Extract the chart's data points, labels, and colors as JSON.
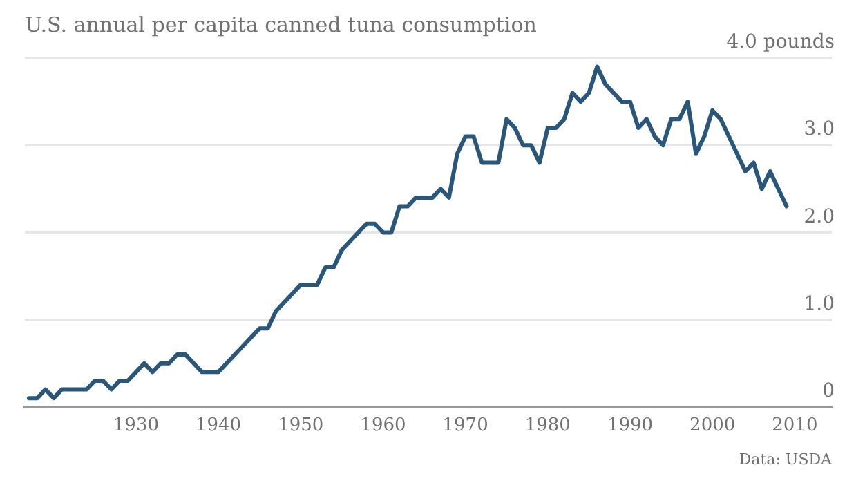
{
  "chart_data": {
    "type": "line",
    "title": "U.S. annual per capita canned tuna consumption",
    "annotations": [
      "Data: USDA"
    ],
    "x": [
      1917,
      1918,
      1919,
      1920,
      1921,
      1922,
      1923,
      1924,
      1925,
      1926,
      1927,
      1928,
      1929,
      1930,
      1931,
      1932,
      1933,
      1934,
      1935,
      1936,
      1937,
      1938,
      1939,
      1940,
      1941,
      1942,
      1943,
      1944,
      1945,
      1946,
      1947,
      1948,
      1949,
      1950,
      1951,
      1952,
      1953,
      1954,
      1955,
      1956,
      1957,
      1958,
      1959,
      1960,
      1961,
      1962,
      1963,
      1964,
      1965,
      1966,
      1967,
      1968,
      1969,
      1970,
      1971,
      1972,
      1973,
      1974,
      1975,
      1976,
      1977,
      1978,
      1979,
      1980,
      1981,
      1982,
      1983,
      1984,
      1985,
      1986,
      1987,
      1988,
      1989,
      1990,
      1991,
      1992,
      1993,
      1994,
      1995,
      1996,
      1997,
      1998,
      1999,
      2000,
      2001,
      2002,
      2003,
      2004,
      2005,
      2006,
      2007,
      2008,
      2009
    ],
    "series": [
      {
        "color": "#2a5779",
        "values": [
          0.1,
          0.1,
          0.2,
          0.1,
          0.2,
          0.2,
          0.2,
          0.2,
          0.3,
          0.3,
          0.2,
          0.3,
          0.3,
          0.4,
          0.5,
          0.4,
          0.5,
          0.5,
          0.6,
          0.6,
          0.5,
          0.4,
          0.4,
          0.4,
          0.5,
          0.6,
          0.7,
          0.8,
          0.9,
          0.9,
          1.1,
          1.2,
          1.3,
          1.4,
          1.4,
          1.4,
          1.6,
          1.6,
          1.8,
          1.9,
          2.0,
          2.1,
          2.1,
          2.0,
          2.0,
          2.3,
          2.3,
          2.4,
          2.4,
          2.4,
          2.5,
          2.4,
          2.9,
          3.1,
          3.1,
          2.8,
          2.8,
          2.8,
          3.3,
          3.2,
          3.0,
          3.0,
          2.8,
          3.2,
          3.2,
          3.3,
          3.6,
          3.5,
          3.6,
          3.9,
          3.7,
          3.6,
          3.5,
          3.5,
          3.2,
          3.3,
          3.1,
          3.0,
          3.3,
          3.3,
          3.5,
          2.9,
          3.1,
          3.4,
          3.3,
          3.1,
          2.9,
          2.7,
          2.8,
          2.5,
          2.7,
          2.5,
          2.3
        ]
      }
    ],
    "xlim": [
      1916.5,
      2014.5
    ],
    "xticks": [
      1930,
      1940,
      1950,
      1960,
      1970,
      1980,
      1990,
      2000,
      2010
    ],
    "ylim": [
      0,
      4
    ],
    "yticks": [
      {
        "value": 0,
        "label": "0"
      },
      {
        "value": 1,
        "label": "1.0"
      },
      {
        "value": 2,
        "label": "2.0"
      },
      {
        "value": 3,
        "label": "3.0"
      },
      {
        "value": 4,
        "label": "4.0 pounds"
      }
    ],
    "grid": "y",
    "legend": false,
    "marker": "none",
    "line_style": "solid"
  }
}
